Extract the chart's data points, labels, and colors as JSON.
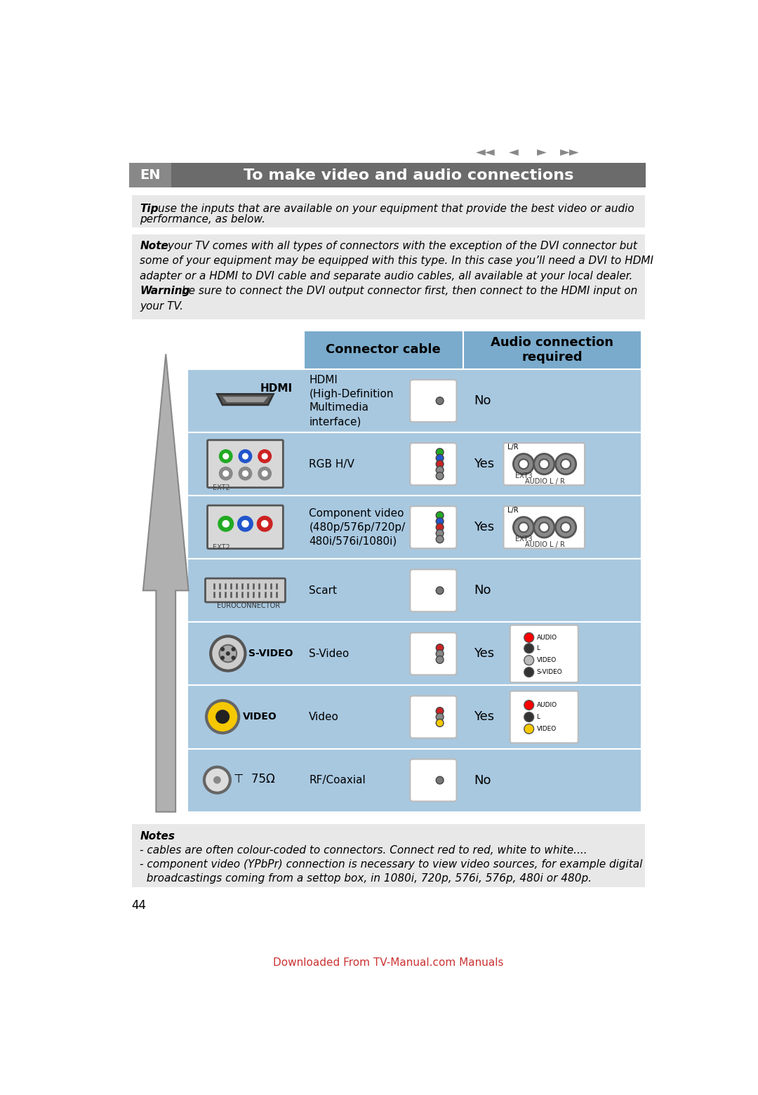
{
  "title": "To make video and audio connections",
  "en_label": "EN",
  "tip_bold": "Tip",
  "tip_rest": ": use the inputs that are available on your equipment that provide the best video or audio\nperformance, as below.",
  "note_lines": [
    [
      "Note",
      ": your TV comes with all types of connectors with the exception of the DVI connector but"
    ],
    [
      "",
      "some of your equipment may be equipped with this type. In this case you’ll need a DVI to HDMI"
    ],
    [
      "",
      "adapter or a HDMI to DVI cable and separate audio cables, all available at your local dealer."
    ],
    [
      "Warning",
      ": be sure to connect the DVI output connector first, then connect to the HDMI input on"
    ],
    [
      "",
      "your TV."
    ]
  ],
  "col_header1": "Connector cable",
  "col_header2": "Audio connection\nrequired",
  "row_descs": [
    "HDMI\n(High-Definition\nMultimedia\ninterface)",
    "RGB H/V",
    "Component video\n(480p/576p/720p/\n480i/576i/1080i)",
    "Scart",
    "S-Video",
    "Video",
    "RF/Coaxial"
  ],
  "row_audio": [
    "No",
    "Yes",
    "Yes",
    "No",
    "Yes",
    "Yes",
    "No"
  ],
  "notes_lines": [
    [
      "Notes",
      ":"
    ],
    [
      "",
      "- cables are often colour-coded to connectors. Connect red to red, white to white...."
    ],
    [
      "",
      "- component video (YPbPr) connection is necessary to view video sources, for example digital"
    ],
    [
      "",
      "  broadcastings coming from a settop box, in 1080i, 720p, 576i, 576p, 480i or 480p."
    ]
  ],
  "footer_link": "Downloaded From TV-Manual.com Manuals",
  "page_number": "44",
  "bg_color": "#ffffff",
  "header_dark": "#6b6b6b",
  "en_bg": "#888888",
  "table_blue": "#a8c8e0",
  "table_header_blue": "#7aabcc",
  "gray_bg": "#e8e8e8",
  "nav_symbols": [
    "◄◄",
    "◄",
    "►",
    "►►"
  ]
}
